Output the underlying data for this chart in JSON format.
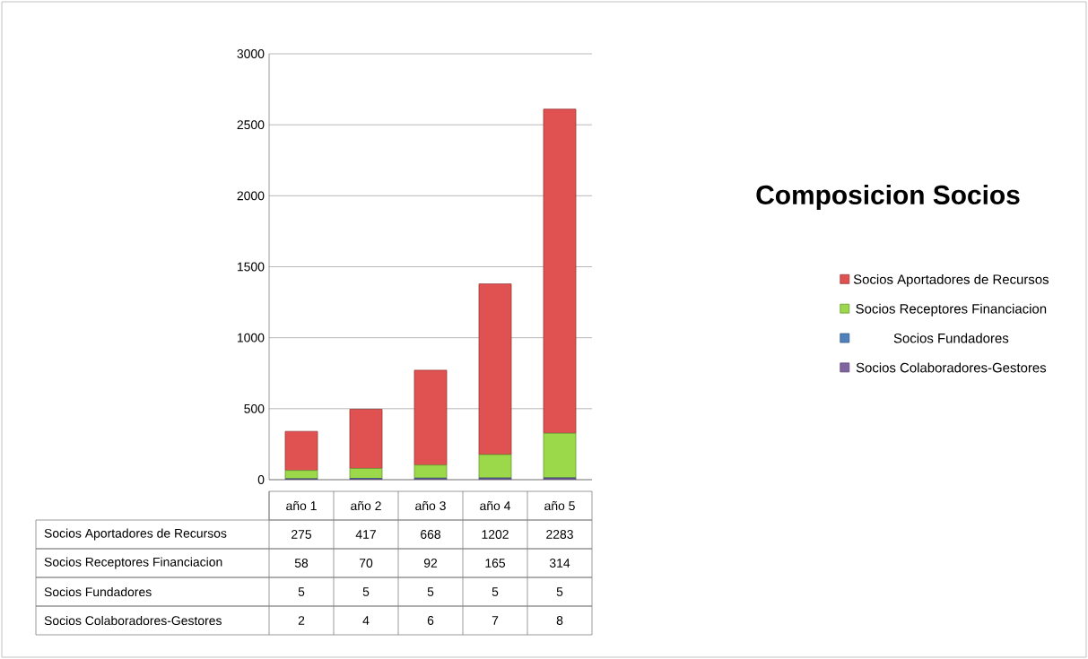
{
  "chart_data": {
    "type": "bar",
    "title": "Composicion Socios",
    "stacked": true,
    "categories": [
      "año 1",
      "año 2",
      "año 3",
      "año 4",
      "año 5"
    ],
    "series": [
      {
        "name": "Socios Colaboradores-Gestores",
        "color": "#8064a2",
        "values": [
          2,
          4,
          6,
          7,
          8
        ]
      },
      {
        "name": "Socios Fundadores",
        "color": "#4f81bd",
        "values": [
          5,
          5,
          5,
          5,
          5
        ]
      },
      {
        "name": "Socios Receptores Financiacion",
        "color": "#9bd84a",
        "values": [
          58,
          70,
          92,
          165,
          314
        ]
      },
      {
        "name": "Socios Aportadores de Recursos",
        "color": "#e05252",
        "values": [
          275,
          417,
          668,
          1202,
          2283
        ]
      }
    ],
    "ylim": [
      0,
      3000
    ],
    "yticks": [
      0,
      500,
      1000,
      1500,
      2000,
      2500,
      3000
    ],
    "grid": "y",
    "legend": "right",
    "data_labels": true
  }
}
